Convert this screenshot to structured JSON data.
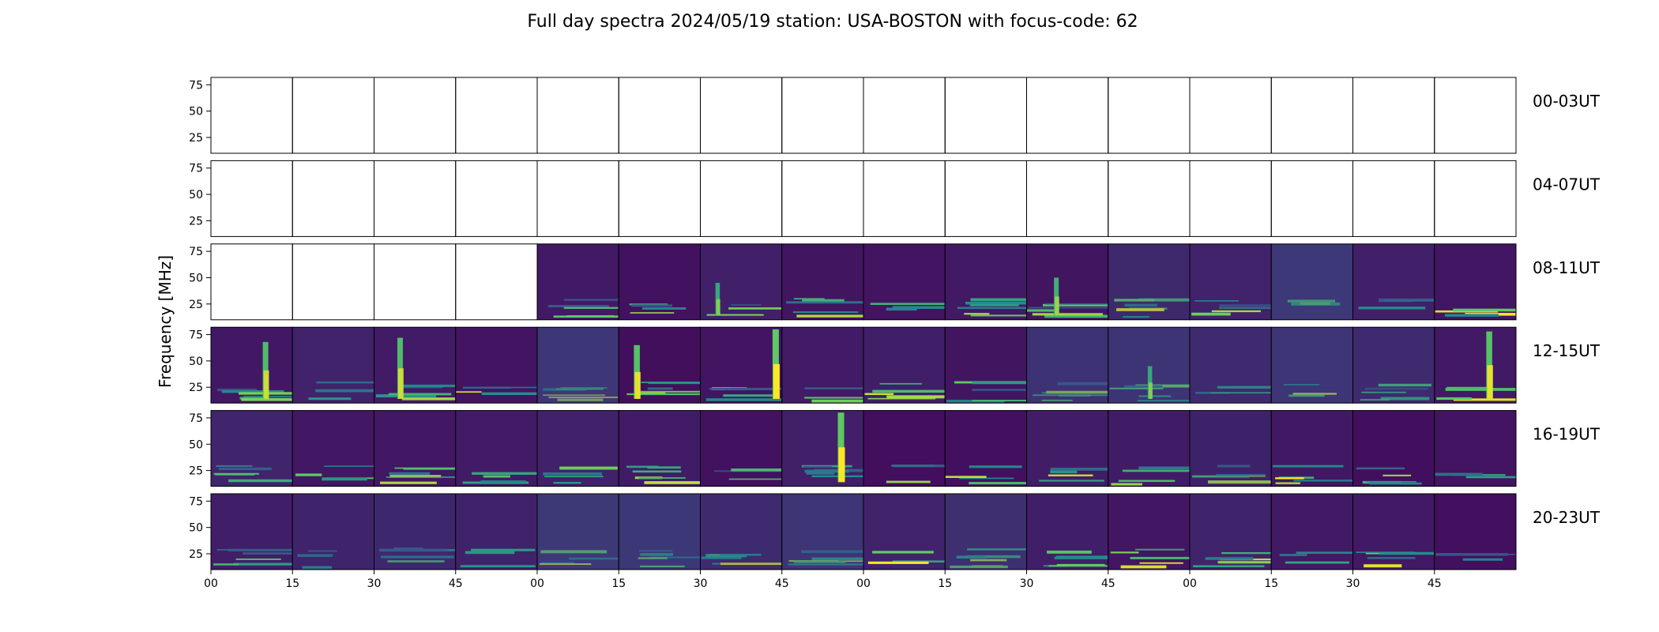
{
  "chart_data": {
    "type": "heatmap",
    "title": "Full day spectra 2024/05/19 station: USA-BOSTON with focus-code: 62",
    "ylabel": "Frequency [MHz]",
    "ylim": [
      10,
      82
    ],
    "yticks": [
      25,
      50,
      75
    ],
    "ytick_labels": [
      "25",
      "50",
      "75"
    ],
    "xtick_labels": [
      "00",
      "15",
      "30",
      "45",
      "00",
      "15",
      "30",
      "45",
      "00",
      "15",
      "30",
      "45",
      "00",
      "15",
      "30",
      "45"
    ],
    "colormap": "viridis",
    "colors": [
      "#440154",
      "#3b528b",
      "#21918c",
      "#5ec962",
      "#fde725"
    ],
    "panels_per_row": 16,
    "panel_minutes": 15,
    "rows": [
      {
        "label": "00-03UT",
        "data_start": 16
      },
      {
        "label": "04-07UT",
        "data_start": 16
      },
      {
        "label": "08-11UT",
        "data_start": 4
      },
      {
        "label": "12-15UT",
        "data_start": 0
      },
      {
        "label": "16-19UT",
        "data_start": 0
      },
      {
        "label": "20-23UT",
        "data_start": 0
      }
    ],
    "bursts": [
      {
        "row": 2,
        "panel": 6,
        "pos": 0.2,
        "fmax": 45,
        "strength": 0.5
      },
      {
        "row": 2,
        "panel": 10,
        "pos": 0.35,
        "fmax": 50,
        "strength": 0.6
      },
      {
        "row": 3,
        "panel": 0,
        "pos": 0.65,
        "fmax": 68,
        "strength": 0.8
      },
      {
        "row": 3,
        "panel": 2,
        "pos": 0.3,
        "fmax": 72,
        "strength": 0.8
      },
      {
        "row": 3,
        "panel": 5,
        "pos": 0.2,
        "fmax": 65,
        "strength": 0.9
      },
      {
        "row": 3,
        "panel": 6,
        "pos": 0.9,
        "fmax": 80,
        "strength": 1.0
      },
      {
        "row": 3,
        "panel": 11,
        "pos": 0.5,
        "fmax": 45,
        "strength": 0.5
      },
      {
        "row": 3,
        "panel": 15,
        "pos": 0.65,
        "fmax": 78,
        "strength": 0.9
      },
      {
        "row": 4,
        "panel": 7,
        "pos": 0.7,
        "fmax": 80,
        "strength": 1.0
      }
    ]
  }
}
